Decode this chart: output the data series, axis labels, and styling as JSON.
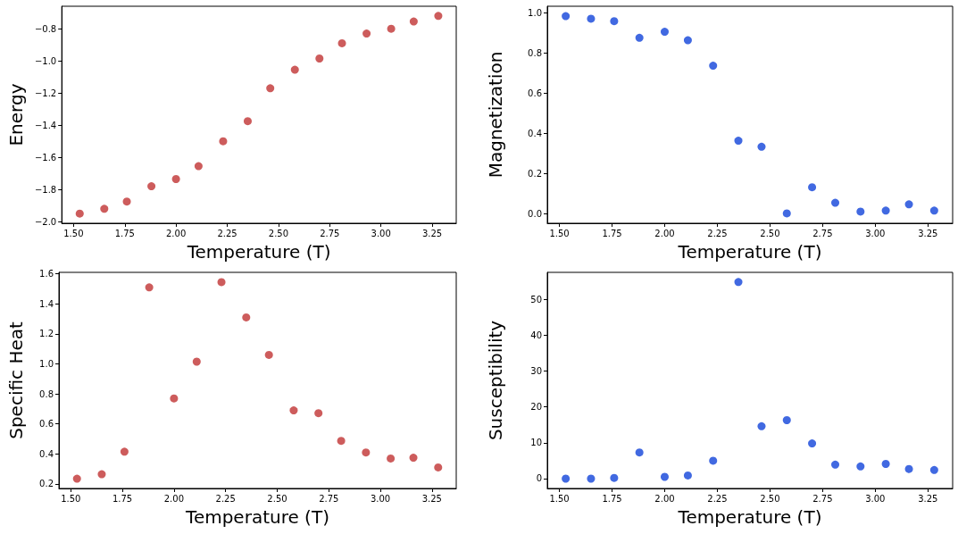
{
  "chart_data": [
    {
      "type": "scatter",
      "xlabel": "Temperature (T)",
      "ylabel": "Energy",
      "marker": "circle",
      "grid": false,
      "x": [
        1.53,
        1.65,
        1.76,
        1.88,
        2.0,
        2.11,
        2.23,
        2.35,
        2.46,
        2.58,
        2.7,
        2.81,
        2.93,
        3.05,
        3.16,
        3.28
      ],
      "series": [
        {
          "color": "#cd5c5c",
          "values": [
            -1.95,
            -1.92,
            -1.875,
            -1.78,
            -1.735,
            -1.655,
            -1.5,
            -1.375,
            -1.17,
            -1.055,
            -0.985,
            -0.89,
            -0.83,
            -0.8,
            -0.755,
            -0.72
          ]
        }
      ],
      "xlim": [
        1.4425,
        3.3675
      ],
      "xticks": [
        {
          "value": 1.5,
          "label": "1.50"
        },
        {
          "value": 1.75,
          "label": "1.75"
        },
        {
          "value": 2,
          "label": "2.00"
        },
        {
          "value": 2.25,
          "label": "2.25"
        },
        {
          "value": 2.5,
          "label": "2.50"
        },
        {
          "value": 2.75,
          "label": "2.75"
        },
        {
          "value": 3,
          "label": "3.00"
        },
        {
          "value": 3.25,
          "label": "3.25"
        }
      ],
      "ylim": [
        -2.01,
        -0.66
      ],
      "yticks": [
        {
          "value": -2,
          "label": "−2.0"
        },
        {
          "value": -1.8,
          "label": "−1.8"
        },
        {
          "value": -1.6,
          "label": "−1.6"
        },
        {
          "value": -1.4,
          "label": "−1.4"
        },
        {
          "value": -1.2,
          "label": "−1.2"
        },
        {
          "value": -1,
          "label": "−1.0"
        },
        {
          "value": -0.8,
          "label": "−0.8"
        }
      ]
    },
    {
      "type": "scatter",
      "xlabel": "Temperature (T)",
      "ylabel": "Magnetization",
      "marker": "circle",
      "grid": false,
      "x": [
        1.53,
        1.65,
        1.76,
        1.88,
        2.0,
        2.11,
        2.23,
        2.35,
        2.46,
        2.58,
        2.7,
        2.81,
        2.93,
        3.05,
        3.16,
        3.28
      ],
      "series": [
        {
          "color": "#4169e1",
          "values": [
            0.985,
            0.972,
            0.96,
            0.877,
            0.907,
            0.865,
            0.738,
            0.365,
            0.335,
            0.003,
            0.133,
            0.056,
            0.012,
            0.017,
            0.048,
            0.017
          ]
        }
      ],
      "xlim": [
        1.4425,
        3.3675
      ],
      "xticks": [
        {
          "value": 1.5,
          "label": "1.50"
        },
        {
          "value": 1.75,
          "label": "1.75"
        },
        {
          "value": 2,
          "label": "2.00"
        },
        {
          "value": 2.25,
          "label": "2.25"
        },
        {
          "value": 2.5,
          "label": "2.50"
        },
        {
          "value": 2.75,
          "label": "2.75"
        },
        {
          "value": 3,
          "label": "3.00"
        },
        {
          "value": 3.25,
          "label": "3.25"
        }
      ],
      "ylim": [
        -0.046,
        1.034
      ],
      "yticks": [
        {
          "value": 0,
          "label": "0.0"
        },
        {
          "value": 0.2,
          "label": "0.2"
        },
        {
          "value": 0.4,
          "label": "0.4"
        },
        {
          "value": 0.6,
          "label": "0.6"
        },
        {
          "value": 0.8,
          "label": "0.8"
        },
        {
          "value": 1,
          "label": "1.0"
        }
      ]
    },
    {
      "type": "scatter",
      "xlabel": "Temperature (T)",
      "ylabel": "Specific Heat",
      "marker": "circle",
      "grid": false,
      "x": [
        1.53,
        1.65,
        1.76,
        1.88,
        2.0,
        2.11,
        2.23,
        2.35,
        2.46,
        2.58,
        2.7,
        2.81,
        2.93,
        3.05,
        3.16,
        3.28
      ],
      "series": [
        {
          "color": "#cd5c5c",
          "values": [
            0.235,
            0.265,
            0.415,
            1.51,
            0.77,
            1.015,
            1.545,
            1.31,
            1.06,
            0.69,
            0.672,
            0.487,
            0.41,
            0.37,
            0.375,
            0.31
          ]
        }
      ],
      "xlim": [
        1.4425,
        3.3675
      ],
      "xticks": [
        {
          "value": 1.5,
          "label": "1.50"
        },
        {
          "value": 1.75,
          "label": "1.75"
        },
        {
          "value": 2,
          "label": "2.00"
        },
        {
          "value": 2.25,
          "label": "2.25"
        },
        {
          "value": 2.5,
          "label": "2.50"
        },
        {
          "value": 2.75,
          "label": "2.75"
        },
        {
          "value": 3,
          "label": "3.00"
        },
        {
          "value": 3.25,
          "label": "3.25"
        }
      ],
      "ylim": [
        0.17,
        1.61
      ],
      "yticks": [
        0.2,
        0.4,
        0.6,
        0.8,
        {
          "value": 1,
          "label": "1.0"
        },
        1.2,
        1.4,
        1.6
      ]
    },
    {
      "type": "scatter",
      "xlabel": "Temperature (T)",
      "ylabel": "Susceptibility",
      "marker": "circle",
      "grid": false,
      "x": [
        1.53,
        1.65,
        1.76,
        1.88,
        2.0,
        2.11,
        2.23,
        2.35,
        2.46,
        2.58,
        2.7,
        2.81,
        2.93,
        3.05,
        3.16,
        3.28
      ],
      "series": [
        {
          "color": "#4169e1",
          "values": [
            0,
            0,
            0.2,
            7.3,
            0.5,
            0.9,
            5.0,
            54.8,
            14.6,
            16.3,
            9.8,
            3.9,
            3.4,
            4.1,
            2.7,
            2.4
          ]
        }
      ],
      "xlim": [
        1.4425,
        3.3675
      ],
      "xticks": [
        {
          "value": 1.5,
          "label": "1.50"
        },
        {
          "value": 1.75,
          "label": "1.75"
        },
        {
          "value": 2,
          "label": "2.00"
        },
        {
          "value": 2.25,
          "label": "2.25"
        },
        {
          "value": 2.5,
          "label": "2.50"
        },
        {
          "value": 2.75,
          "label": "2.75"
        },
        {
          "value": 3,
          "label": "3.00"
        },
        {
          "value": 3.25,
          "label": "3.25"
        }
      ],
      "ylim": [
        -2.74,
        57.5
      ],
      "yticks": [
        0,
        10,
        20,
        30,
        40,
        50
      ]
    }
  ]
}
